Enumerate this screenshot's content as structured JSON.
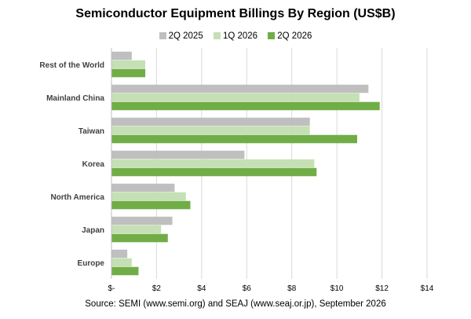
{
  "chart_data": {
    "type": "bar",
    "orientation": "horizontal",
    "title": "Semiconductor Equipment Billings By Region (US$B)",
    "categories": [
      "Rest of the World",
      "Mainland China",
      "Taiwan",
      "Korea",
      "North America",
      "Japan",
      "Europe"
    ],
    "series": [
      {
        "name": "2Q 2025",
        "color": "#bfbfbf",
        "values": [
          0.9,
          11.4,
          8.8,
          5.9,
          2.8,
          2.7,
          0.7
        ]
      },
      {
        "name": "1Q 2026",
        "color": "#c5e0b4",
        "values": [
          1.5,
          11.0,
          8.8,
          9.0,
          3.3,
          2.2,
          0.9
        ]
      },
      {
        "name": "2Q 2026",
        "color": "#70ad47",
        "values": [
          1.5,
          11.9,
          10.9,
          9.1,
          3.5,
          2.5,
          1.2
        ]
      }
    ],
    "xlim": [
      0,
      14
    ],
    "xticks": [
      "$-",
      "$2",
      "$4",
      "$6",
      "$8",
      "$10",
      "$12",
      "$14"
    ],
    "grid": true,
    "legend_position": "top",
    "source": "Source: SEMI (www.semi.org) and SEAJ (www.seaj.or.jp), September 2026"
  }
}
